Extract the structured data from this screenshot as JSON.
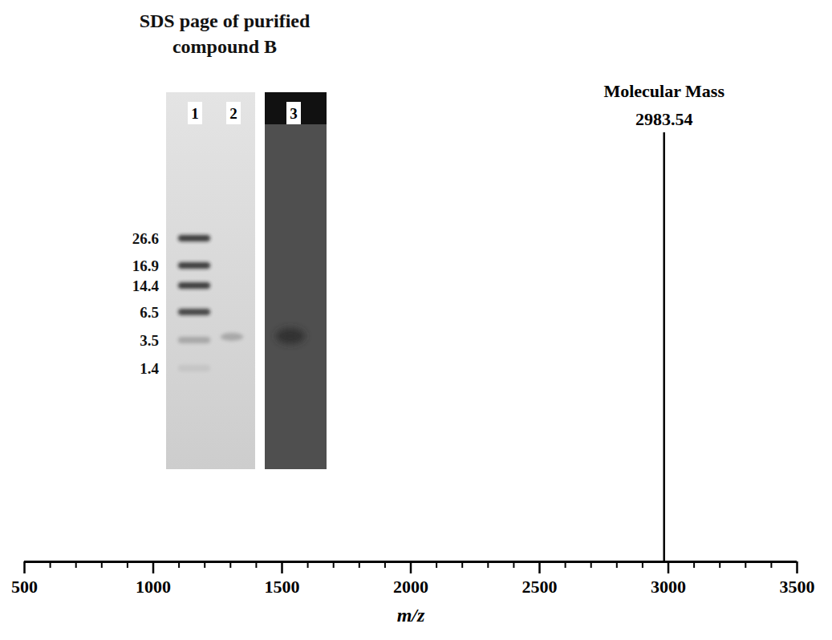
{
  "chart_data": {
    "type": "bar",
    "x_label": "m/z",
    "x": [
      2983.54
    ],
    "values": [
      100
    ],
    "color": "#000000",
    "xlim": [
      500,
      3500
    ],
    "xticks": [
      500,
      1000,
      1500,
      2000,
      2500,
      3000,
      3500
    ],
    "ylim": [
      0,
      100
    ],
    "tick_labels": "x",
    "annotations": [
      {
        "x": 2983.54,
        "text": "Molecular Mass",
        "label": "2983.54"
      }
    ]
  },
  "inset": {
    "title": "SDS page of purified compound B",
    "lanes": [
      "1",
      "2",
      "3"
    ],
    "markers": [
      26.6,
      16.9,
      14.4,
      6.5,
      3.5,
      1.4
    ],
    "compound_band": 3.5
  }
}
